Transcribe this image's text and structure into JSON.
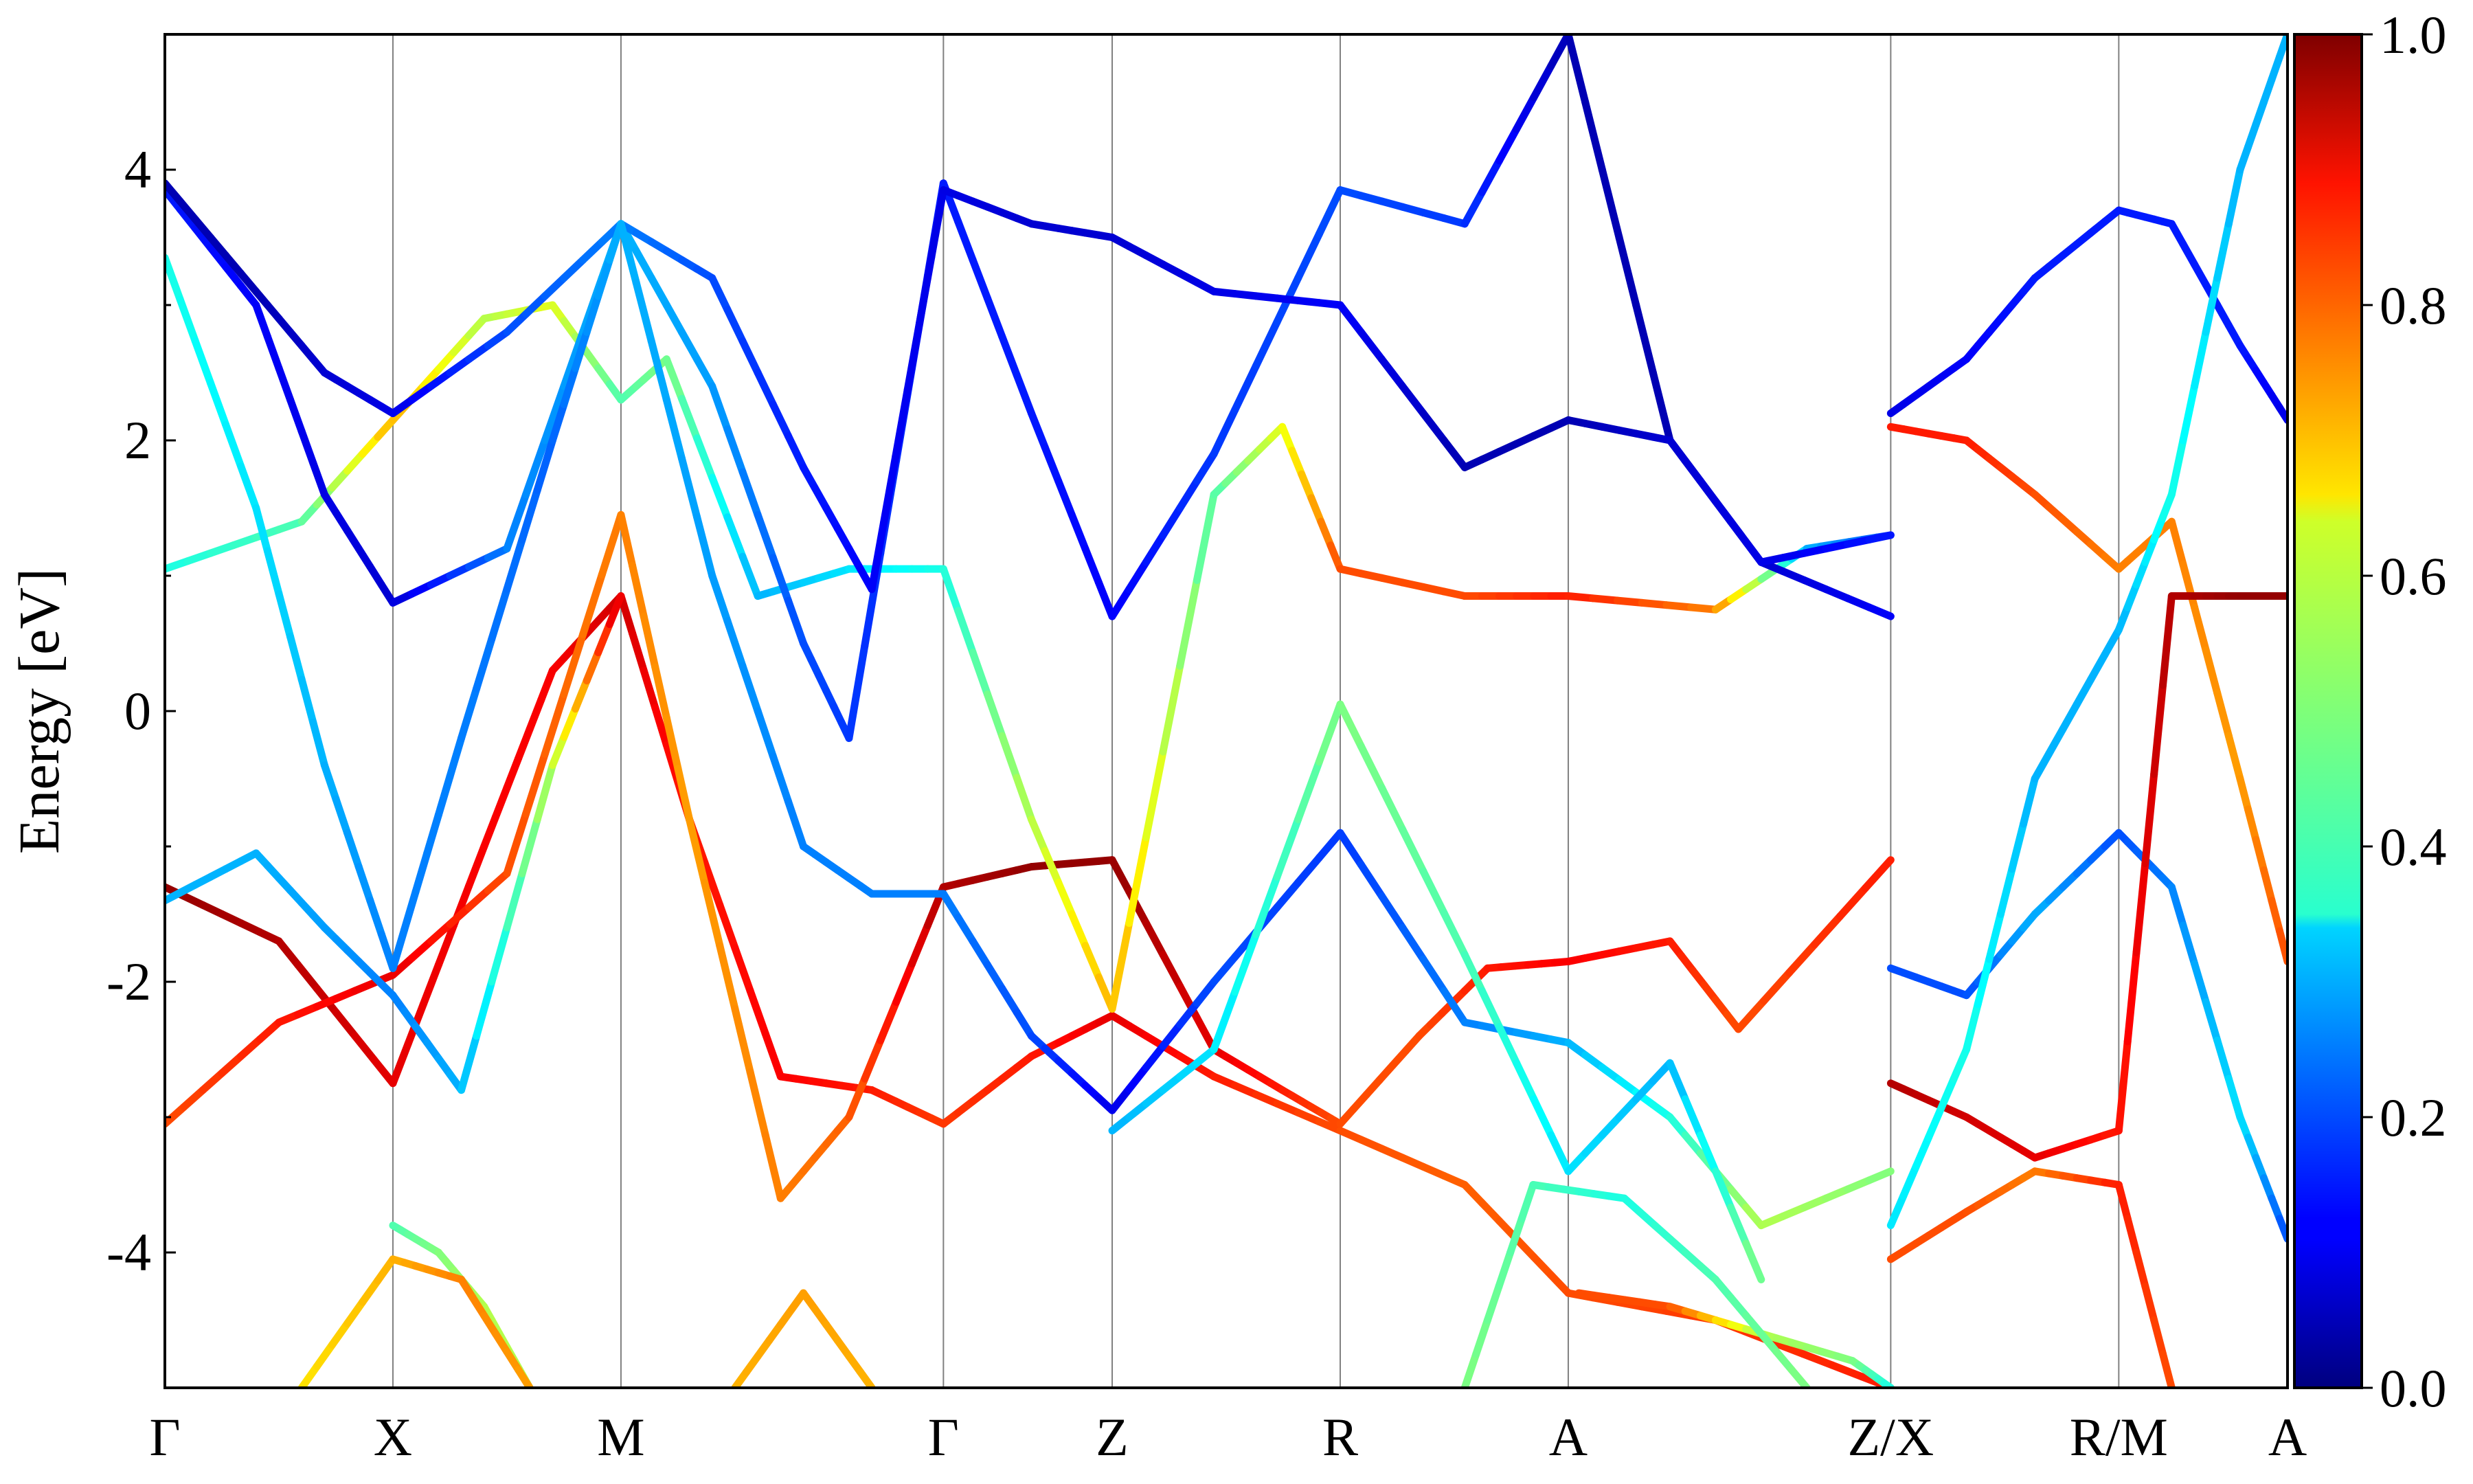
{
  "chart_data": {
    "type": "line",
    "ylabel": "Energy [eV]",
    "ylim": [
      -5,
      5
    ],
    "yticks": [
      4,
      2,
      0,
      -2,
      -4
    ],
    "ytick_labels": [
      "4",
      "2",
      "0",
      "-2",
      "-4"
    ],
    "kpath": {
      "labels": [
        "Γ",
        "X",
        "M",
        "Γ",
        "Z",
        "R",
        "A",
        "Z/X",
        "R/M",
        "A"
      ],
      "positions": [
        0,
        0.5,
        1.0,
        1.707,
        2.077,
        2.577,
        3.077,
        3.784,
        4.284,
        4.654
      ]
    },
    "colorbar": {
      "range": [
        0,
        1
      ],
      "ticks": [
        0.0,
        0.2,
        0.4,
        0.6,
        0.8,
        1.0
      ],
      "tick_labels": [
        "0.0",
        "0.2",
        "0.4",
        "0.6",
        "0.8",
        "1.0"
      ],
      "colormap": "jet"
    },
    "series": [
      {
        "points": [
          [
            0,
            -1.3,
            0.98
          ],
          [
            0.25,
            -1.7,
            0.95
          ],
          [
            0.5,
            -2.75,
            0.9
          ],
          [
            0.7,
            -1.0,
            0.88
          ],
          [
            0.85,
            0.3,
            0.88
          ],
          [
            1.0,
            0.85,
            0.92
          ],
          [
            1.15,
            -0.8,
            0.85
          ],
          [
            1.35,
            -2.7,
            0.88
          ],
          [
            1.55,
            -2.8,
            0.85
          ],
          [
            1.707,
            -3.05,
            0.82
          ],
          [
            1.9,
            -2.55,
            0.85
          ],
          [
            2.077,
            -2.25,
            0.9
          ],
          [
            2.3,
            -2.7,
            0.85
          ],
          [
            2.577,
            -3.1,
            0.8
          ],
          [
            2.85,
            -3.5,
            0.78
          ],
          [
            3.077,
            -4.3,
            0.8
          ],
          [
            3.4,
            -4.5,
            0.82
          ],
          [
            3.784,
            -5.0,
            0.85
          ]
        ]
      },
      {
        "points": [
          [
            0,
            -3.05,
            0.8
          ],
          [
            0.25,
            -2.3,
            0.85
          ],
          [
            0.5,
            -1.95,
            0.9
          ],
          [
            0.75,
            -1.2,
            0.8
          ],
          [
            1.0,
            1.45,
            0.75
          ],
          [
            1.15,
            -0.8,
            0.72
          ],
          [
            1.35,
            -3.6,
            0.75
          ],
          [
            1.5,
            -3.0,
            0.78
          ],
          [
            1.707,
            -1.3,
            0.95
          ],
          [
            1.9,
            -1.15,
            0.98
          ],
          [
            2.077,
            -1.1,
            0.98
          ],
          [
            2.3,
            -2.5,
            0.9
          ],
          [
            2.45,
            -2.8,
            0.85
          ],
          [
            2.577,
            -3.05,
            0.8
          ],
          [
            2.75,
            -2.4,
            0.8
          ],
          [
            2.9,
            -1.9,
            0.85
          ],
          [
            3.077,
            -1.85,
            0.88
          ],
          [
            3.3,
            -1.7,
            0.85
          ],
          [
            3.45,
            -2.35,
            0.8
          ],
          [
            3.784,
            -1.1,
            0.85
          ]
        ]
      },
      {
        "points": [
          [
            0,
            1.05,
            0.4
          ],
          [
            0.3,
            1.4,
            0.45
          ],
          [
            0.5,
            2.15,
            0.7
          ],
          [
            0.7,
            2.9,
            0.55
          ],
          [
            0.85,
            3.0,
            0.6
          ],
          [
            1.0,
            2.3,
            0.45
          ],
          [
            1.1,
            2.6,
            0.5
          ],
          [
            1.3,
            0.85,
            0.3
          ],
          [
            1.5,
            1.05,
            0.35
          ],
          [
            1.707,
            1.05,
            0.4
          ],
          [
            1.9,
            -0.8,
            0.55
          ],
          [
            2.077,
            -2.2,
            0.7
          ],
          [
            2.3,
            1.6,
            0.45
          ],
          [
            2.45,
            2.1,
            0.6
          ],
          [
            2.577,
            1.05,
            0.8
          ],
          [
            2.85,
            0.85,
            0.8
          ],
          [
            3.077,
            0.85,
            0.85
          ],
          [
            3.4,
            0.75,
            0.75
          ],
          [
            3.6,
            1.2,
            0.3
          ],
          [
            3.784,
            1.3,
            0.2
          ]
        ]
      },
      {
        "points": [
          [
            0,
            3.85,
            0.15
          ],
          [
            0.2,
            3.0,
            0.12
          ],
          [
            0.35,
            1.6,
            0.1
          ],
          [
            0.5,
            0.8,
            0.08
          ],
          [
            0.75,
            1.2,
            0.25
          ],
          [
            1.0,
            3.6,
            0.3
          ],
          [
            1.2,
            2.4,
            0.28
          ],
          [
            1.4,
            0.5,
            0.2
          ],
          [
            1.5,
            -0.2,
            0.18
          ],
          [
            1.707,
            3.9,
            0.15
          ],
          [
            1.9,
            2.2,
            0.15
          ],
          [
            2.077,
            0.7,
            0.12
          ],
          [
            2.3,
            1.9,
            0.18
          ],
          [
            2.577,
            3.85,
            0.2
          ],
          [
            2.85,
            3.6,
            0.18
          ],
          [
            3.077,
            5.0,
            0.05
          ],
          [
            3.3,
            2.0,
            0.05
          ],
          [
            3.5,
            1.1,
            0.08
          ],
          [
            3.784,
            0.7,
            0.12
          ]
        ]
      },
      {
        "points": [
          [
            0,
            3.9,
            0.05
          ],
          [
            0.2,
            3.1,
            0.05
          ],
          [
            0.35,
            2.5,
            0.08
          ],
          [
            0.5,
            2.2,
            0.1
          ],
          [
            0.75,
            2.8,
            0.2
          ],
          [
            1.0,
            3.6,
            0.25
          ],
          [
            1.2,
            3.2,
            0.2
          ],
          [
            1.4,
            1.8,
            0.15
          ],
          [
            1.55,
            0.9,
            0.12
          ],
          [
            1.707,
            3.85,
            0.1
          ],
          [
            1.9,
            3.6,
            0.08
          ],
          [
            2.077,
            3.5,
            0.08
          ],
          [
            2.3,
            3.1,
            0.1
          ],
          [
            2.577,
            3.0,
            0.12
          ],
          [
            2.85,
            1.8,
            0.05
          ],
          [
            3.077,
            2.15,
            0.05
          ],
          [
            3.3,
            2.0,
            0.08
          ],
          [
            3.5,
            1.1,
            0.1
          ],
          [
            3.784,
            1.3,
            0.15
          ]
        ]
      },
      {
        "points": [
          [
            0,
            3.35,
            0.4
          ],
          [
            0.2,
            1.5,
            0.35
          ],
          [
            0.35,
            -0.4,
            0.3
          ],
          [
            0.5,
            -1.9,
            0.25
          ],
          [
            0.65,
            -0.2,
            0.25
          ],
          [
            0.85,
            2.0,
            0.22
          ],
          [
            1.0,
            3.6,
            0.3
          ],
          [
            1.2,
            1.0,
            0.28
          ],
          [
            1.4,
            -1.0,
            0.25
          ],
          [
            1.55,
            -1.35,
            0.25
          ],
          [
            1.707,
            -1.35,
            0.25
          ],
          [
            1.9,
            -2.4,
            0.2
          ],
          [
            2.077,
            -2.95,
            0.1
          ],
          [
            2.3,
            -2.0,
            0.2
          ],
          [
            2.577,
            -0.9,
            0.18
          ],
          [
            2.85,
            -2.3,
            0.25
          ],
          [
            3.077,
            -2.45,
            0.3
          ],
          [
            3.3,
            -3.0,
            0.4
          ],
          [
            3.5,
            -3.8,
            0.55
          ],
          [
            3.784,
            -3.4,
            0.5
          ]
        ]
      },
      {
        "points": [
          [
            0,
            -1.4,
            0.3
          ],
          [
            0.2,
            -1.05,
            0.3
          ],
          [
            0.35,
            -1.6,
            0.28
          ],
          [
            0.5,
            -2.1,
            0.25
          ],
          [
            0.65,
            -2.8,
            0.3
          ],
          [
            0.85,
            -0.4,
            0.55
          ],
          [
            1.0,
            0.85,
            0.92
          ]
        ]
      },
      {
        "points": [
          [
            2.077,
            -3.1,
            0.3
          ],
          [
            2.3,
            -2.5,
            0.35
          ],
          [
            2.577,
            0.05,
            0.5
          ],
          [
            2.85,
            -1.8,
            0.45
          ],
          [
            3.077,
            -3.4,
            0.35
          ],
          [
            3.3,
            -2.6,
            0.3
          ],
          [
            3.5,
            -4.2,
            0.5
          ]
        ]
      },
      {
        "points": [
          [
            3.784,
            -1.9,
            0.2
          ],
          [
            3.95,
            -2.1,
            0.2
          ],
          [
            4.1,
            -1.5,
            0.3
          ],
          [
            4.284,
            -0.9,
            0.2
          ],
          [
            4.4,
            -1.3,
            0.25
          ],
          [
            4.55,
            -3.0,
            0.35
          ],
          [
            4.654,
            -3.9,
            0.2
          ]
        ]
      },
      {
        "points": [
          [
            3.784,
            2.1,
            0.85
          ],
          [
            3.95,
            2.0,
            0.85
          ],
          [
            4.1,
            1.6,
            0.8
          ],
          [
            4.284,
            1.05,
            0.75
          ],
          [
            4.4,
            1.4,
            0.75
          ],
          [
            4.55,
            -0.5,
            0.72
          ],
          [
            4.654,
            -1.85,
            0.8
          ]
        ]
      },
      {
        "points": [
          [
            3.784,
            -2.75,
            0.95
          ],
          [
            3.95,
            -3.0,
            0.92
          ],
          [
            4.1,
            -3.3,
            0.9
          ],
          [
            4.284,
            -3.1,
            0.85
          ],
          [
            4.4,
            0.85,
            0.95
          ],
          [
            4.55,
            0.85,
            0.98
          ],
          [
            4.654,
            0.85,
            0.98
          ]
        ]
      },
      {
        "points": [
          [
            3.784,
            2.2,
            0.1
          ],
          [
            3.95,
            2.6,
            0.12
          ],
          [
            4.1,
            3.2,
            0.15
          ],
          [
            4.284,
            3.7,
            0.15
          ],
          [
            4.4,
            3.6,
            0.15
          ],
          [
            4.55,
            2.7,
            0.15
          ],
          [
            4.654,
            2.15,
            0.1
          ]
        ]
      },
      {
        "points": [
          [
            3.784,
            -3.8,
            0.35
          ],
          [
            3.95,
            -2.5,
            0.4
          ],
          [
            4.1,
            -0.5,
            0.3
          ],
          [
            4.284,
            0.6,
            0.3
          ],
          [
            4.4,
            1.6,
            0.4
          ],
          [
            4.55,
            4.0,
            0.3
          ],
          [
            4.654,
            5.0,
            0.3
          ]
        ]
      },
      {
        "points": [
          [
            3.784,
            -4.05,
            0.8
          ],
          [
            3.95,
            -3.7,
            0.8
          ],
          [
            4.1,
            -3.4,
            0.75
          ],
          [
            4.284,
            -3.5,
            0.85
          ],
          [
            4.4,
            -5.0,
            0.8
          ]
        ]
      },
      {
        "points": [
          [
            0.5,
            -3.8,
            0.45
          ],
          [
            0.6,
            -4.0,
            0.5
          ],
          [
            0.7,
            -4.4,
            0.55
          ],
          [
            0.8,
            -5.0,
            0.55
          ]
        ]
      },
      {
        "points": [
          [
            0.3,
            -5.0,
            0.65
          ],
          [
            0.5,
            -4.05,
            0.7
          ],
          [
            0.65,
            -4.2,
            0.75
          ],
          [
            0.8,
            -5.0,
            0.72
          ]
        ]
      },
      {
        "points": [
          [
            1.25,
            -5.0,
            0.7
          ],
          [
            1.4,
            -4.3,
            0.72
          ],
          [
            1.55,
            -5.0,
            0.7
          ]
        ]
      },
      {
        "points": [
          [
            3.1,
            -4.3,
            0.8
          ],
          [
            3.3,
            -4.4,
            0.8
          ],
          [
            3.5,
            -4.6,
            0.55
          ],
          [
            3.7,
            -4.8,
            0.5
          ],
          [
            3.784,
            -5.0,
            0.4
          ]
        ]
      },
      {
        "points": [
          [
            2.85,
            -5.0,
            0.5
          ],
          [
            3.0,
            -3.5,
            0.45
          ],
          [
            3.2,
            -3.6,
            0.4
          ],
          [
            3.4,
            -4.2,
            0.45
          ],
          [
            3.6,
            -5.0,
            0.5
          ]
        ]
      }
    ]
  }
}
